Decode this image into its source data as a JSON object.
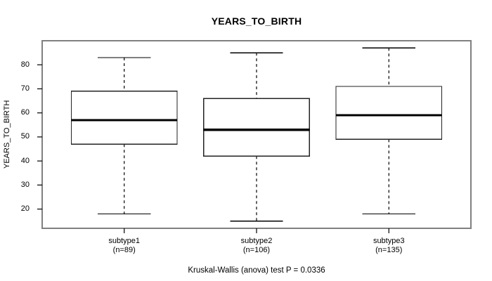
{
  "chart_data": {
    "type": "boxplot",
    "title": "YEARS_TO_BIRTH",
    "ylabel": "YEARS_TO_BIRTH",
    "xlabel": "",
    "caption": "Kruskal-Wallis (anova) test P = 0.0336",
    "groups": [
      {
        "label": "subtype1",
        "n_label": "(n=89)",
        "n": 89,
        "lower_whisker": 18,
        "q1": 47,
        "median": 57,
        "q3": 69,
        "upper_whisker": 83
      },
      {
        "label": "subtype2",
        "n_label": "(n=106)",
        "n": 106,
        "lower_whisker": 15,
        "q1": 42,
        "median": 53,
        "q3": 66,
        "upper_whisker": 85
      },
      {
        "label": "subtype3",
        "n_label": "(n=135)",
        "n": 135,
        "lower_whisker": 18,
        "q1": 49,
        "median": 59,
        "q3": 71,
        "upper_whisker": 87
      }
    ],
    "yticks": [
      20,
      30,
      40,
      50,
      60,
      70,
      80
    ],
    "ylim": [
      12,
      90
    ],
    "grid": false,
    "legend": "none",
    "colors": {
      "frame": "#808080",
      "box_border": "#222222",
      "median": "#000000",
      "whisker": "#000000",
      "text": "#000000",
      "background": "#ffffff"
    }
  }
}
